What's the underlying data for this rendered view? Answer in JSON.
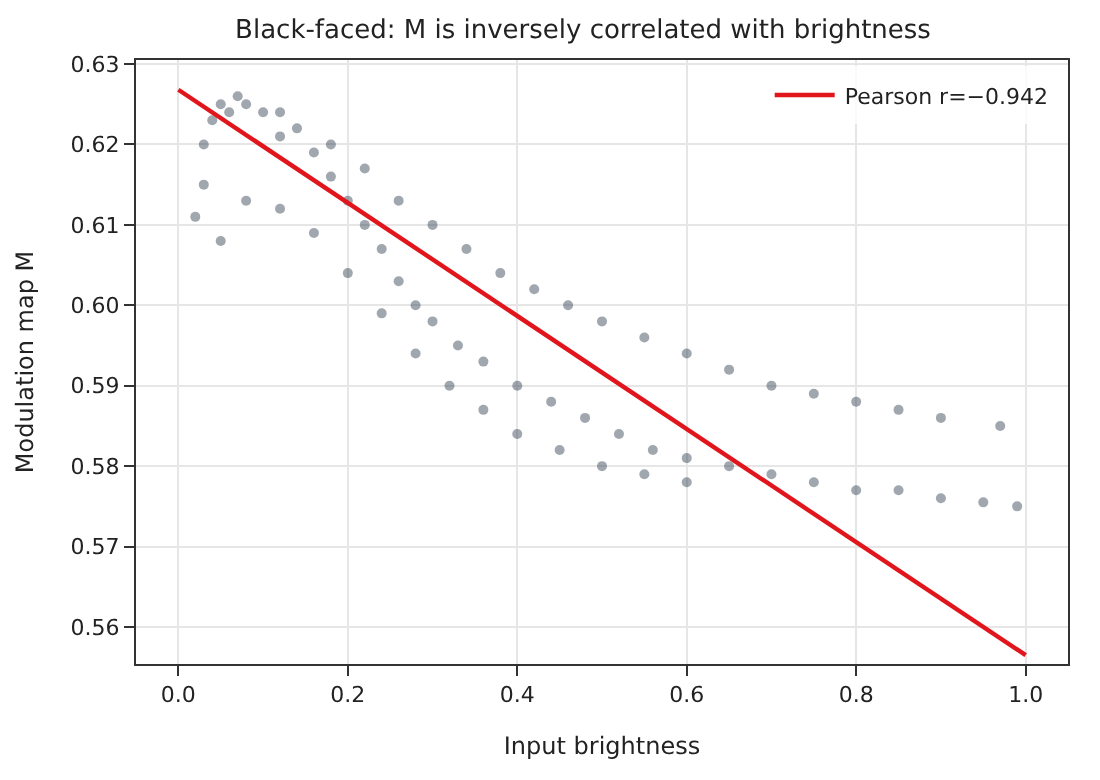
{
  "chart_data": {
    "type": "scatter",
    "title": "Black-faced: M is inversely correlated with brightness",
    "xlabel": "Input brightness",
    "ylabel": "Modulation map M",
    "xlim": [
      -0.05,
      1.05
    ],
    "xticks": [
      {
        "value": 0,
        "label": "0.0"
      },
      0.2,
      0.4,
      0.6,
      0.8,
      {
        "value": 1,
        "label": "1.0"
      }
    ],
    "ylim": [
      0.5554,
      0.6305
    ],
    "yticks": [
      0.56,
      0.57,
      0.58,
      0.59,
      {
        "value": 0.6,
        "label": "0.60"
      },
      0.61,
      0.62,
      0.63
    ],
    "grid": true,
    "legend": "top right",
    "series": [
      {
        "marker": "circle",
        "color": "#2e3b4e",
        "x": [
          0.03,
          0.04,
          0.05,
          0.06,
          0.08,
          0.1,
          0.12,
          0.14,
          0.16,
          0.18,
          0.2,
          0.22,
          0.24,
          0.26,
          0.28,
          0.3,
          0.33,
          0.36,
          0.4,
          0.44,
          0.48,
          0.52,
          0.56,
          0.6,
          0.65,
          0.7,
          0.75,
          0.8,
          0.85,
          0.9,
          0.95,
          0.99,
          0.03,
          0.07,
          0.12,
          0.18,
          0.22,
          0.26,
          0.3,
          0.34,
          0.38,
          0.42,
          0.46,
          0.5,
          0.55,
          0.6,
          0.65,
          0.7,
          0.75,
          0.8,
          0.85,
          0.9,
          0.97,
          0.02,
          0.05,
          0.08,
          0.12,
          0.16,
          0.2,
          0.24,
          0.28,
          0.32,
          0.36,
          0.4,
          0.45,
          0.5,
          0.55,
          0.6
        ],
        "values": [
          0.62,
          0.623,
          0.625,
          0.624,
          0.625,
          0.624,
          0.624,
          0.622,
          0.619,
          0.616,
          0.613,
          0.61,
          0.607,
          0.603,
          0.6,
          0.598,
          0.595,
          0.593,
          0.59,
          0.588,
          0.586,
          0.584,
          0.582,
          0.581,
          0.58,
          0.579,
          0.578,
          0.577,
          0.577,
          0.576,
          0.5755,
          0.575,
          0.615,
          0.626,
          0.621,
          0.62,
          0.617,
          0.613,
          0.61,
          0.607,
          0.604,
          0.602,
          0.6,
          0.598,
          0.596,
          0.594,
          0.592,
          0.59,
          0.589,
          0.588,
          0.587,
          0.586,
          0.585,
          0.611,
          0.608,
          0.613,
          0.612,
          0.609,
          0.604,
          0.599,
          0.594,
          0.59,
          0.587,
          0.584,
          0.582,
          0.58,
          0.579,
          0.578
        ]
      },
      {
        "type": "line",
        "marker": "none",
        "name": "Pearson r=−0.942",
        "color": "#e0161c",
        "x": [
          0,
          1
        ],
        "values": [
          0.6268,
          0.5565
        ]
      }
    ]
  }
}
